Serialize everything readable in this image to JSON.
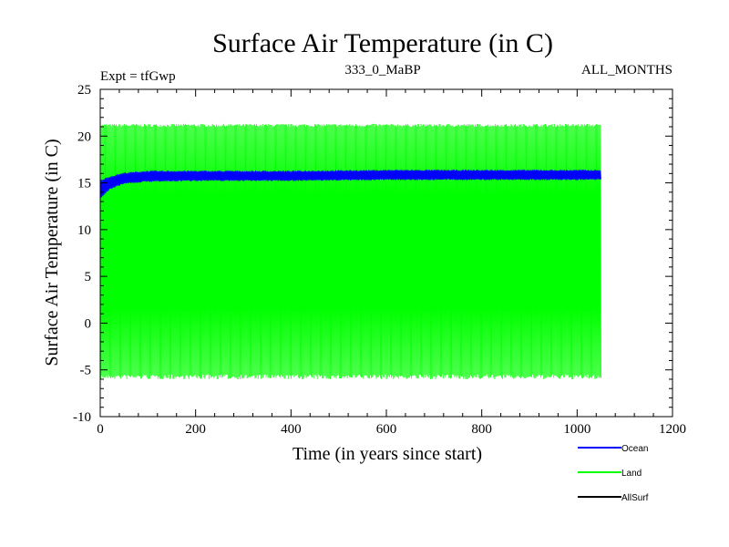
{
  "chart_data": {
    "type": "line",
    "title": "Surface Air Temperature (in C)",
    "subtitle_left": "Expt = tfGwp",
    "subtitle_center": "333_0_MaBP",
    "subtitle_right": "ALL_MONTHS",
    "xlabel": "Time (in years since start)",
    "ylabel": "Surface Air Temperature (in C)",
    "xlim": [
      0,
      1200
    ],
    "ylim": [
      -10,
      25
    ],
    "x_ticks": [
      0,
      200,
      400,
      600,
      800,
      1000,
      1200
    ],
    "x_tick_labels": [
      "0",
      "200",
      "400",
      "600",
      "800",
      "1000",
      "1200"
    ],
    "y_ticks": [
      -10,
      -5,
      0,
      5,
      10,
      15,
      20,
      25
    ],
    "y_tick_labels": [
      "-10",
      "-5",
      "0",
      "5",
      "10",
      "15",
      "20",
      "25"
    ],
    "legend_position": "bottom-right",
    "series": [
      {
        "name": "Land",
        "color": "#00ff00",
        "x_range": [
          0,
          1050
        ],
        "seasonal_band": {
          "min": -5.5,
          "max": 21.0
        },
        "description_values": {
          "typical_min": -5.5,
          "typical_max": 21.0,
          "extreme_min": -6.3,
          "extreme_max": 21.6
        }
      },
      {
        "name": "Ocean",
        "color": "#0000ff",
        "x_range": [
          0,
          1050
        ],
        "trajectory": [
          {
            "x": 0,
            "min": 13.4,
            "max": 15.2
          },
          {
            "x": 20,
            "min": 14.4,
            "max": 15.6
          },
          {
            "x": 50,
            "min": 15.0,
            "max": 16.0
          },
          {
            "x": 100,
            "min": 15.2,
            "max": 16.2
          },
          {
            "x": 200,
            "min": 15.3,
            "max": 16.2
          },
          {
            "x": 400,
            "min": 15.3,
            "max": 16.2
          },
          {
            "x": 600,
            "min": 15.4,
            "max": 16.3
          },
          {
            "x": 800,
            "min": 15.4,
            "max": 16.3
          },
          {
            "x": 1050,
            "min": 15.4,
            "max": 16.3
          }
        ]
      },
      {
        "name": "AllSurf",
        "color": "#000000",
        "x_range": [
          0,
          1050
        ],
        "values": []
      }
    ],
    "legend": [
      {
        "name": "Ocean",
        "color": "#0000ff"
      },
      {
        "name": "Land",
        "color": "#00ff00"
      },
      {
        "name": "AllSurf",
        "color": "#000000"
      }
    ]
  }
}
